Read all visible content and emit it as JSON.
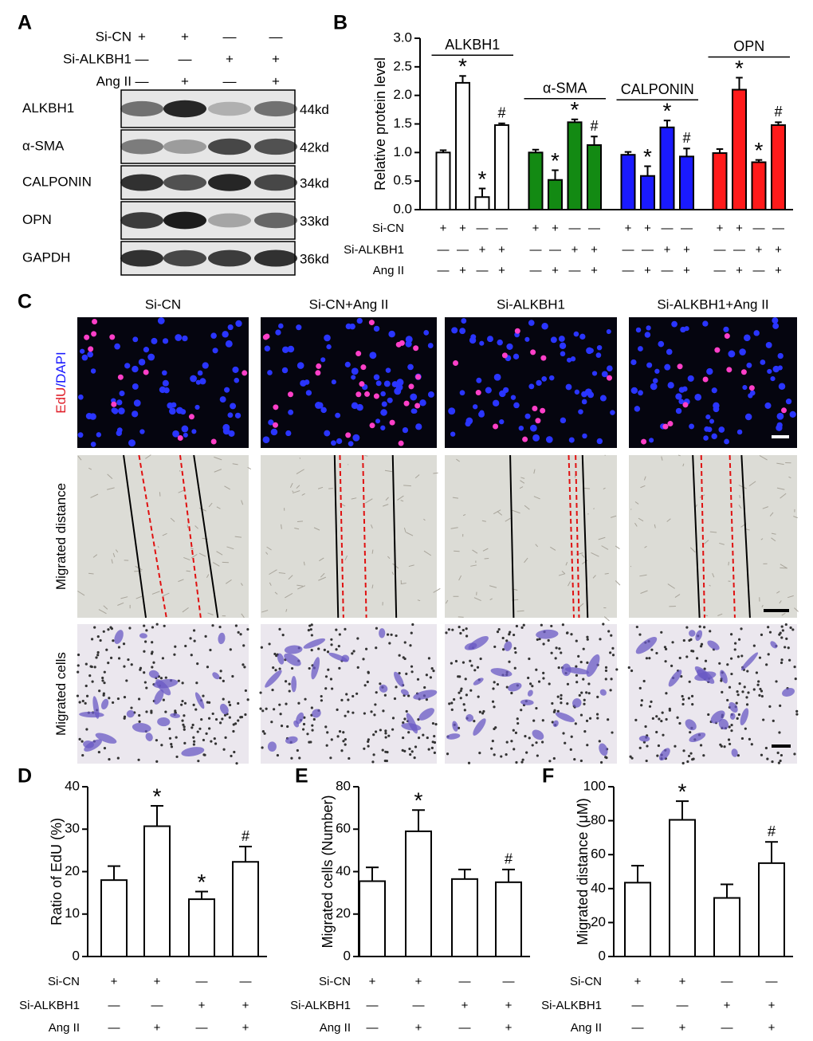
{
  "blot": {
    "label": "A",
    "conditions": [
      {
        "name": "Si-CN",
        "marks": [
          "+",
          "+",
          "—",
          "—"
        ]
      },
      {
        "name": "Si-ALKBH1",
        "marks": [
          "—",
          "—",
          "+",
          "+"
        ]
      },
      {
        "name": "Ang II",
        "marks": [
          "—",
          "+",
          "—",
          "+"
        ]
      }
    ],
    "proteins": [
      {
        "name": "ALKBH1",
        "size": "44kd"
      },
      {
        "name": "α-SMA",
        "size": "42kd"
      },
      {
        "name": "CALPONIN",
        "size": "34kd"
      },
      {
        "name": "OPN",
        "size": "33kd"
      },
      {
        "name": "GAPDH",
        "size": "36kd"
      }
    ]
  },
  "images": {
    "label": "C",
    "columns": [
      "Si-CN",
      "Si-CN+Ang II",
      "Si-ALKBH1",
      "Si-ALKBH1+Ang II"
    ],
    "rows": [
      [
        "EdU",
        "/DAPI"
      ],
      [
        "Migrated distance"
      ],
      [
        "Migrated cells"
      ]
    ]
  },
  "chart_data": [
    {
      "type": "bar",
      "label": "B",
      "y_label": "Relative protein level",
      "ylim": [
        0,
        3
      ],
      "yticks": [
        {
          "value": 0,
          "label": "0.0"
        },
        0.5,
        {
          "value": 1,
          "label": "1.0"
        },
        1.5,
        {
          "value": 2,
          "label": "2.0"
        },
        2.5,
        {
          "value": 3,
          "label": "3.0"
        }
      ],
      "series": [
        {
          "name": "ALKBH1",
          "color": "#ffffff",
          "values": [
            1.0,
            2.22,
            0.22,
            1.48
          ],
          "errors": [
            0.04,
            0.12,
            0.15,
            0.03
          ],
          "annotations": [
            null,
            "*",
            "*",
            "#"
          ]
        },
        {
          "name": "α-SMA",
          "color": "#138a13",
          "values": [
            1.0,
            0.52,
            1.53,
            1.13
          ],
          "errors": [
            0.05,
            0.17,
            0.05,
            0.15
          ],
          "annotations": [
            null,
            "*",
            "*",
            "#"
          ]
        },
        {
          "name": "CALPONIN",
          "color": "#1a1aff",
          "values": [
            0.96,
            0.59,
            1.44,
            0.93
          ],
          "errors": [
            0.05,
            0.17,
            0.12,
            0.14
          ],
          "annotations": [
            null,
            "*",
            "*",
            "#"
          ]
        },
        {
          "name": "OPN",
          "color": "#ff1a1a",
          "values": [
            0.99,
            2.1,
            0.83,
            1.48
          ],
          "errors": [
            0.07,
            0.21,
            0.04,
            0.05
          ],
          "annotations": [
            null,
            "*",
            "*",
            "#"
          ]
        }
      ],
      "conditions": [
        {
          "name": "Si-CN",
          "marks": [
            "+",
            "+",
            "—",
            "—"
          ]
        },
        {
          "name": "Si-ALKBH1",
          "marks": [
            "—",
            "—",
            "+",
            "+"
          ]
        },
        {
          "name": "Ang II",
          "marks": [
            "—",
            "+",
            "—",
            "+"
          ]
        }
      ]
    },
    {
      "type": "bar",
      "label": "D",
      "y_label": "Ratio of EdU (%)",
      "color": "#ffffff",
      "ylim": [
        0,
        40
      ],
      "yticks": [
        0,
        10,
        20,
        30,
        40
      ],
      "values": [
        18,
        30.7,
        13.5,
        22.3
      ],
      "errors": [
        3.3,
        4.8,
        1.8,
        3.6
      ],
      "annotations": [
        null,
        "*",
        "*",
        "#"
      ],
      "conditions": [
        {
          "name": "Si-CN",
          "marks": [
            "+",
            "+",
            "—",
            "—"
          ]
        },
        {
          "name": "Si-ALKBH1",
          "marks": [
            "—",
            "—",
            "+",
            "+"
          ]
        },
        {
          "name": "Ang II",
          "marks": [
            "—",
            "+",
            "—",
            "+"
          ]
        }
      ]
    },
    {
      "type": "bar",
      "label": "E",
      "y_label": "Migrated cells (Number)",
      "color": "#ffffff",
      "ylim": [
        0,
        80
      ],
      "yticks": [
        0,
        20,
        40,
        60,
        80
      ],
      "values": [
        35.5,
        59,
        36.5,
        35
      ],
      "errors": [
        6.5,
        10,
        4.5,
        6
      ],
      "annotations": [
        null,
        "*",
        null,
        "#"
      ],
      "conditions": [
        {
          "name": "Si-CN",
          "marks": [
            "+",
            "+",
            "—",
            "—"
          ]
        },
        {
          "name": "Si-ALKBH1",
          "marks": [
            "—",
            "—",
            "+",
            "+"
          ]
        },
        {
          "name": "Ang II",
          "marks": [
            "—",
            "+",
            "—",
            "+"
          ]
        }
      ]
    },
    {
      "type": "bar",
      "label": "F",
      "y_label": "Migrated distance (μM)",
      "color": "#ffffff",
      "ylim": [
        0,
        100
      ],
      "yticks": [
        0,
        20,
        40,
        60,
        80,
        100
      ],
      "values": [
        43.5,
        80.5,
        34.5,
        55
      ],
      "errors": [
        10,
        11,
        8,
        12.5
      ],
      "annotations": [
        null,
        "*",
        null,
        "#"
      ],
      "conditions": [
        {
          "name": "Si-CN",
          "marks": [
            "+",
            "+",
            "—",
            "—"
          ]
        },
        {
          "name": "Si-ALKBH1",
          "marks": [
            "—",
            "—",
            "+",
            "+"
          ]
        },
        {
          "name": "Ang II",
          "marks": [
            "—",
            "+",
            "—",
            "+"
          ]
        }
      ]
    }
  ]
}
